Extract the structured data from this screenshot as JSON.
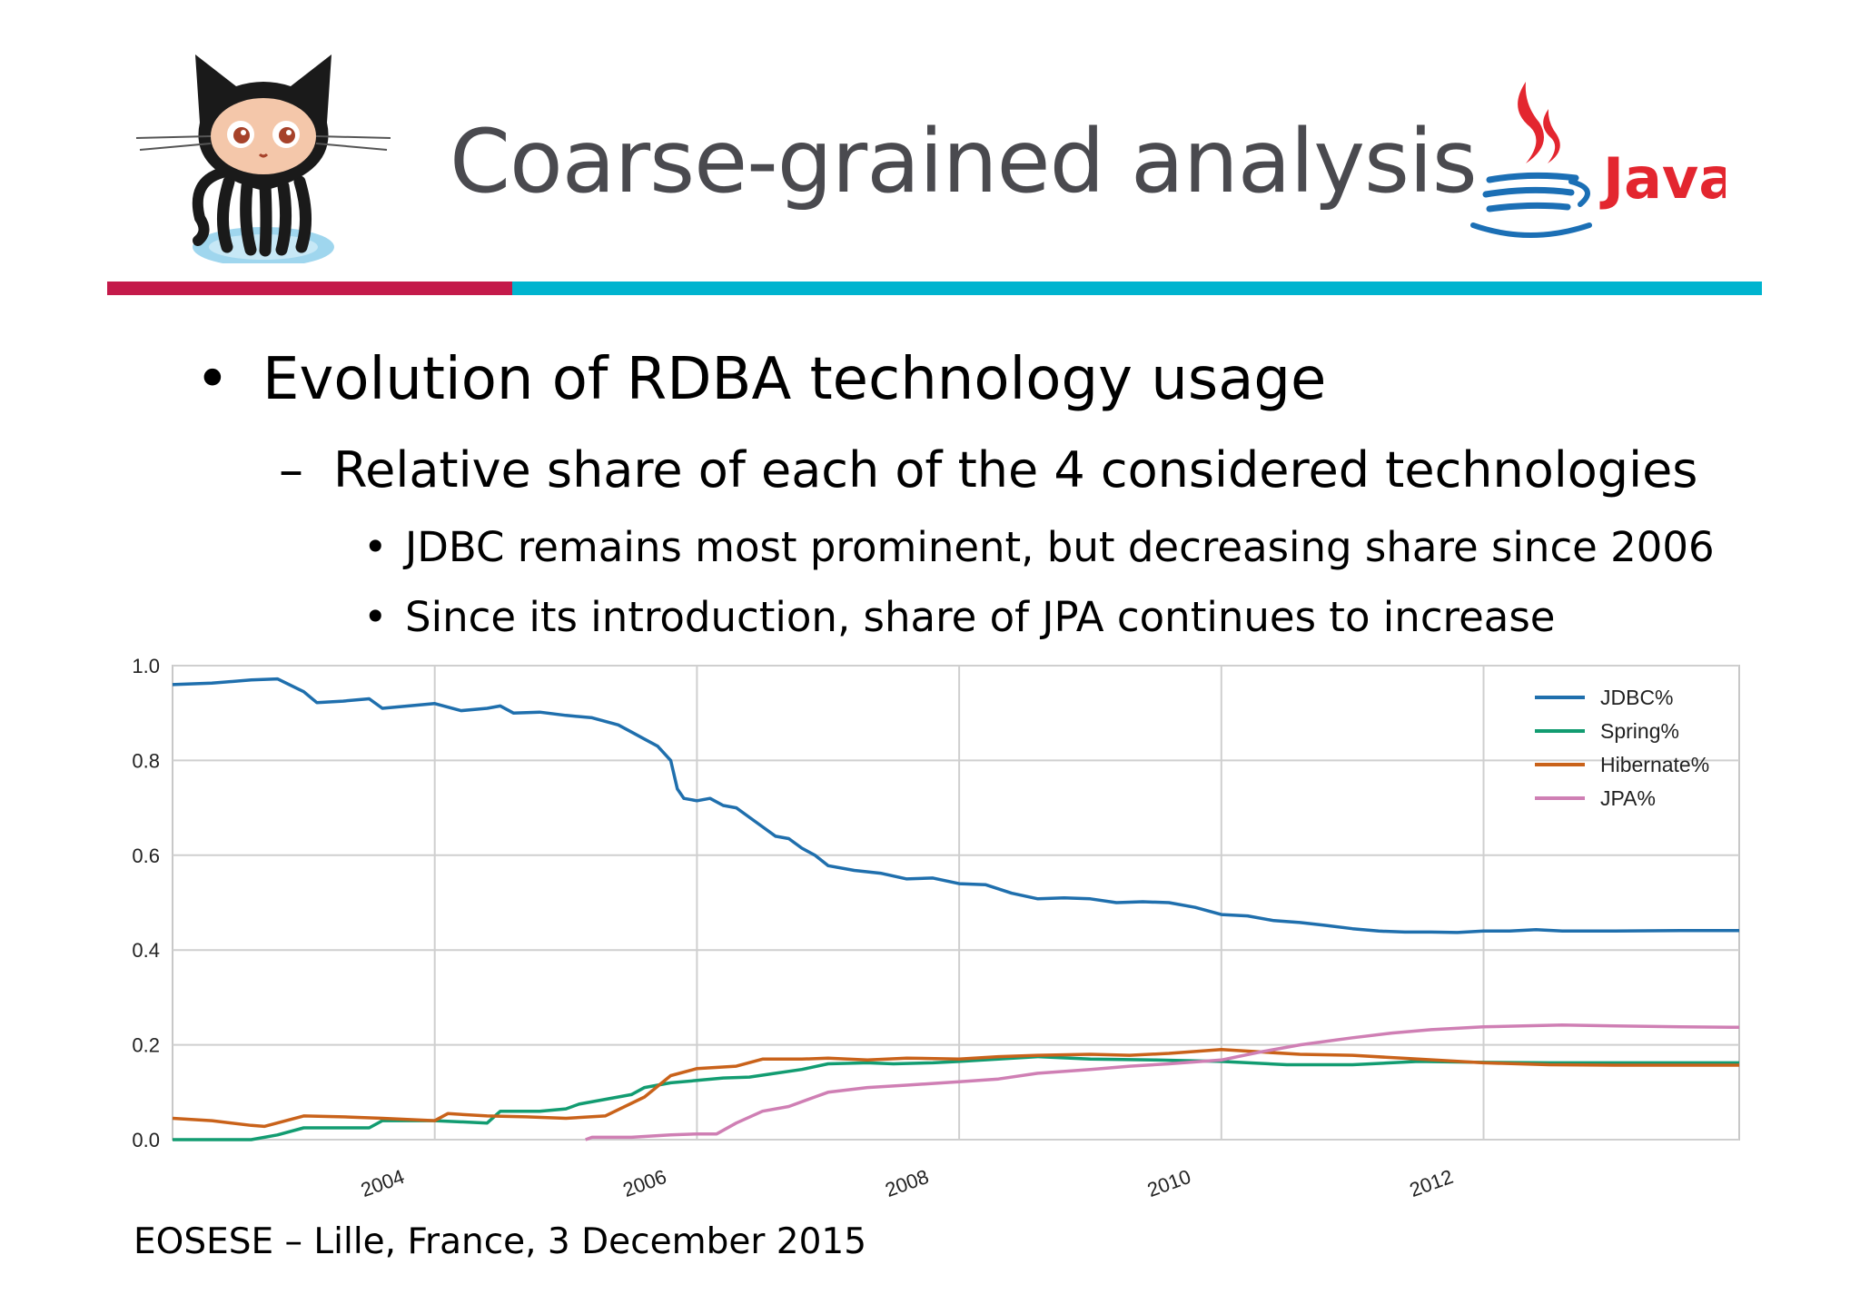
{
  "slide": {
    "title": "Coarse-grained analysis",
    "bullets": {
      "l1": "Evolution of RDBA technology usage",
      "l2": "Relative share of each of the 4 considered technologies",
      "l3a": "JDBC remains most prominent, but decreasing share since 2006",
      "l3b": "Since its introduction, share of JPA continues to increase"
    },
    "footer": "EOSESE – Lille, France,  3 December 2015",
    "logo_right_text": "Java",
    "bullet_glyph": "•",
    "dash_glyph": "–"
  },
  "chart_data": {
    "type": "line",
    "xlim": [
      2002.0,
      2013.95
    ],
    "ylim": [
      0.0,
      1.0
    ],
    "yticks": [
      0.0,
      0.2,
      0.4,
      0.6,
      0.8,
      1.0
    ],
    "ytick_labels": [
      "0.0",
      "0.2",
      "0.4",
      "0.6",
      "0.8",
      "1.0"
    ],
    "xticks": [
      2004,
      2006,
      2008,
      2010,
      2012
    ],
    "xtick_labels": [
      "2004",
      "2006",
      "2008",
      "2010",
      "2012"
    ],
    "grid": true,
    "legend_position": "top-right",
    "series": [
      {
        "name": "JDBC%",
        "color": "#1f6fad",
        "points": [
          [
            2002.0,
            0.96
          ],
          [
            2002.3,
            0.963
          ],
          [
            2002.6,
            0.97
          ],
          [
            2002.8,
            0.972
          ],
          [
            2003.0,
            0.945
          ],
          [
            2003.1,
            0.922
          ],
          [
            2003.3,
            0.925
          ],
          [
            2003.5,
            0.93
          ],
          [
            2003.6,
            0.91
          ],
          [
            2003.8,
            0.915
          ],
          [
            2004.0,
            0.92
          ],
          [
            2004.2,
            0.905
          ],
          [
            2004.4,
            0.91
          ],
          [
            2004.5,
            0.915
          ],
          [
            2004.6,
            0.9
          ],
          [
            2004.8,
            0.902
          ],
          [
            2005.0,
            0.895
          ],
          [
            2005.2,
            0.89
          ],
          [
            2005.4,
            0.875
          ],
          [
            2005.5,
            0.86
          ],
          [
            2005.6,
            0.845
          ],
          [
            2005.7,
            0.83
          ],
          [
            2005.8,
            0.8
          ],
          [
            2005.85,
            0.74
          ],
          [
            2005.9,
            0.72
          ],
          [
            2006.0,
            0.715
          ],
          [
            2006.1,
            0.72
          ],
          [
            2006.2,
            0.705
          ],
          [
            2006.3,
            0.7
          ],
          [
            2006.4,
            0.68
          ],
          [
            2006.5,
            0.66
          ],
          [
            2006.6,
            0.64
          ],
          [
            2006.7,
            0.635
          ],
          [
            2006.8,
            0.615
          ],
          [
            2006.9,
            0.6
          ],
          [
            2007.0,
            0.578
          ],
          [
            2007.2,
            0.568
          ],
          [
            2007.4,
            0.562
          ],
          [
            2007.6,
            0.55
          ],
          [
            2007.8,
            0.552
          ],
          [
            2008.0,
            0.54
          ],
          [
            2008.2,
            0.538
          ],
          [
            2008.4,
            0.52
          ],
          [
            2008.6,
            0.508
          ],
          [
            2008.8,
            0.51
          ],
          [
            2009.0,
            0.508
          ],
          [
            2009.2,
            0.5
          ],
          [
            2009.4,
            0.502
          ],
          [
            2009.6,
            0.5
          ],
          [
            2009.8,
            0.49
          ],
          [
            2010.0,
            0.475
          ],
          [
            2010.2,
            0.472
          ],
          [
            2010.4,
            0.462
          ],
          [
            2010.6,
            0.458
          ],
          [
            2010.8,
            0.452
          ],
          [
            2011.0,
            0.445
          ],
          [
            2011.2,
            0.44
          ],
          [
            2011.4,
            0.438
          ],
          [
            2011.6,
            0.438
          ],
          [
            2011.8,
            0.437
          ],
          [
            2012.0,
            0.44
          ],
          [
            2012.2,
            0.44
          ],
          [
            2012.4,
            0.443
          ],
          [
            2012.6,
            0.44
          ],
          [
            2012.8,
            0.44
          ],
          [
            2013.0,
            0.44
          ],
          [
            2013.5,
            0.441
          ],
          [
            2013.95,
            0.441
          ]
        ]
      },
      {
        "name": "Spring%",
        "color": "#129c71",
        "points": [
          [
            2002.0,
            0.0
          ],
          [
            2002.6,
            0.0
          ],
          [
            2002.8,
            0.01
          ],
          [
            2003.0,
            0.025
          ],
          [
            2003.5,
            0.025
          ],
          [
            2003.6,
            0.04
          ],
          [
            2004.0,
            0.04
          ],
          [
            2004.4,
            0.035
          ],
          [
            2004.5,
            0.06
          ],
          [
            2004.8,
            0.06
          ],
          [
            2005.0,
            0.065
          ],
          [
            2005.1,
            0.075
          ],
          [
            2005.3,
            0.085
          ],
          [
            2005.5,
            0.095
          ],
          [
            2005.6,
            0.11
          ],
          [
            2005.8,
            0.12
          ],
          [
            2006.0,
            0.125
          ],
          [
            2006.2,
            0.13
          ],
          [
            2006.4,
            0.132
          ],
          [
            2006.6,
            0.14
          ],
          [
            2006.8,
            0.148
          ],
          [
            2007.0,
            0.16
          ],
          [
            2007.3,
            0.162
          ],
          [
            2007.5,
            0.16
          ],
          [
            2007.8,
            0.162
          ],
          [
            2008.0,
            0.165
          ],
          [
            2008.3,
            0.17
          ],
          [
            2008.6,
            0.175
          ],
          [
            2009.0,
            0.17
          ],
          [
            2009.5,
            0.168
          ],
          [
            2010.0,
            0.165
          ],
          [
            2010.5,
            0.158
          ],
          [
            2011.0,
            0.158
          ],
          [
            2011.5,
            0.165
          ],
          [
            2012.0,
            0.163
          ],
          [
            2012.5,
            0.162
          ],
          [
            2013.0,
            0.162
          ],
          [
            2013.95,
            0.162
          ]
        ]
      },
      {
        "name": "Hibernate%",
        "color": "#c9621a",
        "points": [
          [
            2002.0,
            0.045
          ],
          [
            2002.3,
            0.04
          ],
          [
            2002.6,
            0.03
          ],
          [
            2002.7,
            0.028
          ],
          [
            2003.0,
            0.05
          ],
          [
            2003.3,
            0.048
          ],
          [
            2003.6,
            0.045
          ],
          [
            2004.0,
            0.04
          ],
          [
            2004.1,
            0.055
          ],
          [
            2004.4,
            0.05
          ],
          [
            2004.7,
            0.048
          ],
          [
            2005.0,
            0.045
          ],
          [
            2005.3,
            0.05
          ],
          [
            2005.6,
            0.09
          ],
          [
            2005.8,
            0.135
          ],
          [
            2006.0,
            0.15
          ],
          [
            2006.3,
            0.155
          ],
          [
            2006.5,
            0.17
          ],
          [
            2006.8,
            0.17
          ],
          [
            2007.0,
            0.172
          ],
          [
            2007.3,
            0.168
          ],
          [
            2007.6,
            0.172
          ],
          [
            2008.0,
            0.17
          ],
          [
            2008.3,
            0.175
          ],
          [
            2008.6,
            0.178
          ],
          [
            2009.0,
            0.18
          ],
          [
            2009.3,
            0.178
          ],
          [
            2009.6,
            0.182
          ],
          [
            2010.0,
            0.19
          ],
          [
            2010.3,
            0.185
          ],
          [
            2010.6,
            0.18
          ],
          [
            2011.0,
            0.178
          ],
          [
            2011.5,
            0.17
          ],
          [
            2012.0,
            0.162
          ],
          [
            2012.5,
            0.158
          ],
          [
            2013.0,
            0.157
          ],
          [
            2013.95,
            0.157
          ]
        ]
      },
      {
        "name": "JPA%",
        "color": "#cf7fb4",
        "points": [
          [
            2005.15,
            0.0
          ],
          [
            2005.2,
            0.005
          ],
          [
            2005.5,
            0.005
          ],
          [
            2005.8,
            0.01
          ],
          [
            2006.0,
            0.012
          ],
          [
            2006.15,
            0.012
          ],
          [
            2006.3,
            0.035
          ],
          [
            2006.5,
            0.06
          ],
          [
            2006.7,
            0.07
          ],
          [
            2006.9,
            0.09
          ],
          [
            2007.0,
            0.1
          ],
          [
            2007.3,
            0.11
          ],
          [
            2007.6,
            0.115
          ],
          [
            2008.0,
            0.122
          ],
          [
            2008.3,
            0.128
          ],
          [
            2008.6,
            0.14
          ],
          [
            2009.0,
            0.148
          ],
          [
            2009.3,
            0.155
          ],
          [
            2009.6,
            0.16
          ],
          [
            2010.0,
            0.168
          ],
          [
            2010.3,
            0.185
          ],
          [
            2010.6,
            0.2
          ],
          [
            2011.0,
            0.215
          ],
          [
            2011.3,
            0.225
          ],
          [
            2011.6,
            0.232
          ],
          [
            2012.0,
            0.238
          ],
          [
            2012.3,
            0.24
          ],
          [
            2012.6,
            0.242
          ],
          [
            2013.0,
            0.24
          ],
          [
            2013.5,
            0.238
          ],
          [
            2013.95,
            0.237
          ]
        ]
      }
    ]
  }
}
